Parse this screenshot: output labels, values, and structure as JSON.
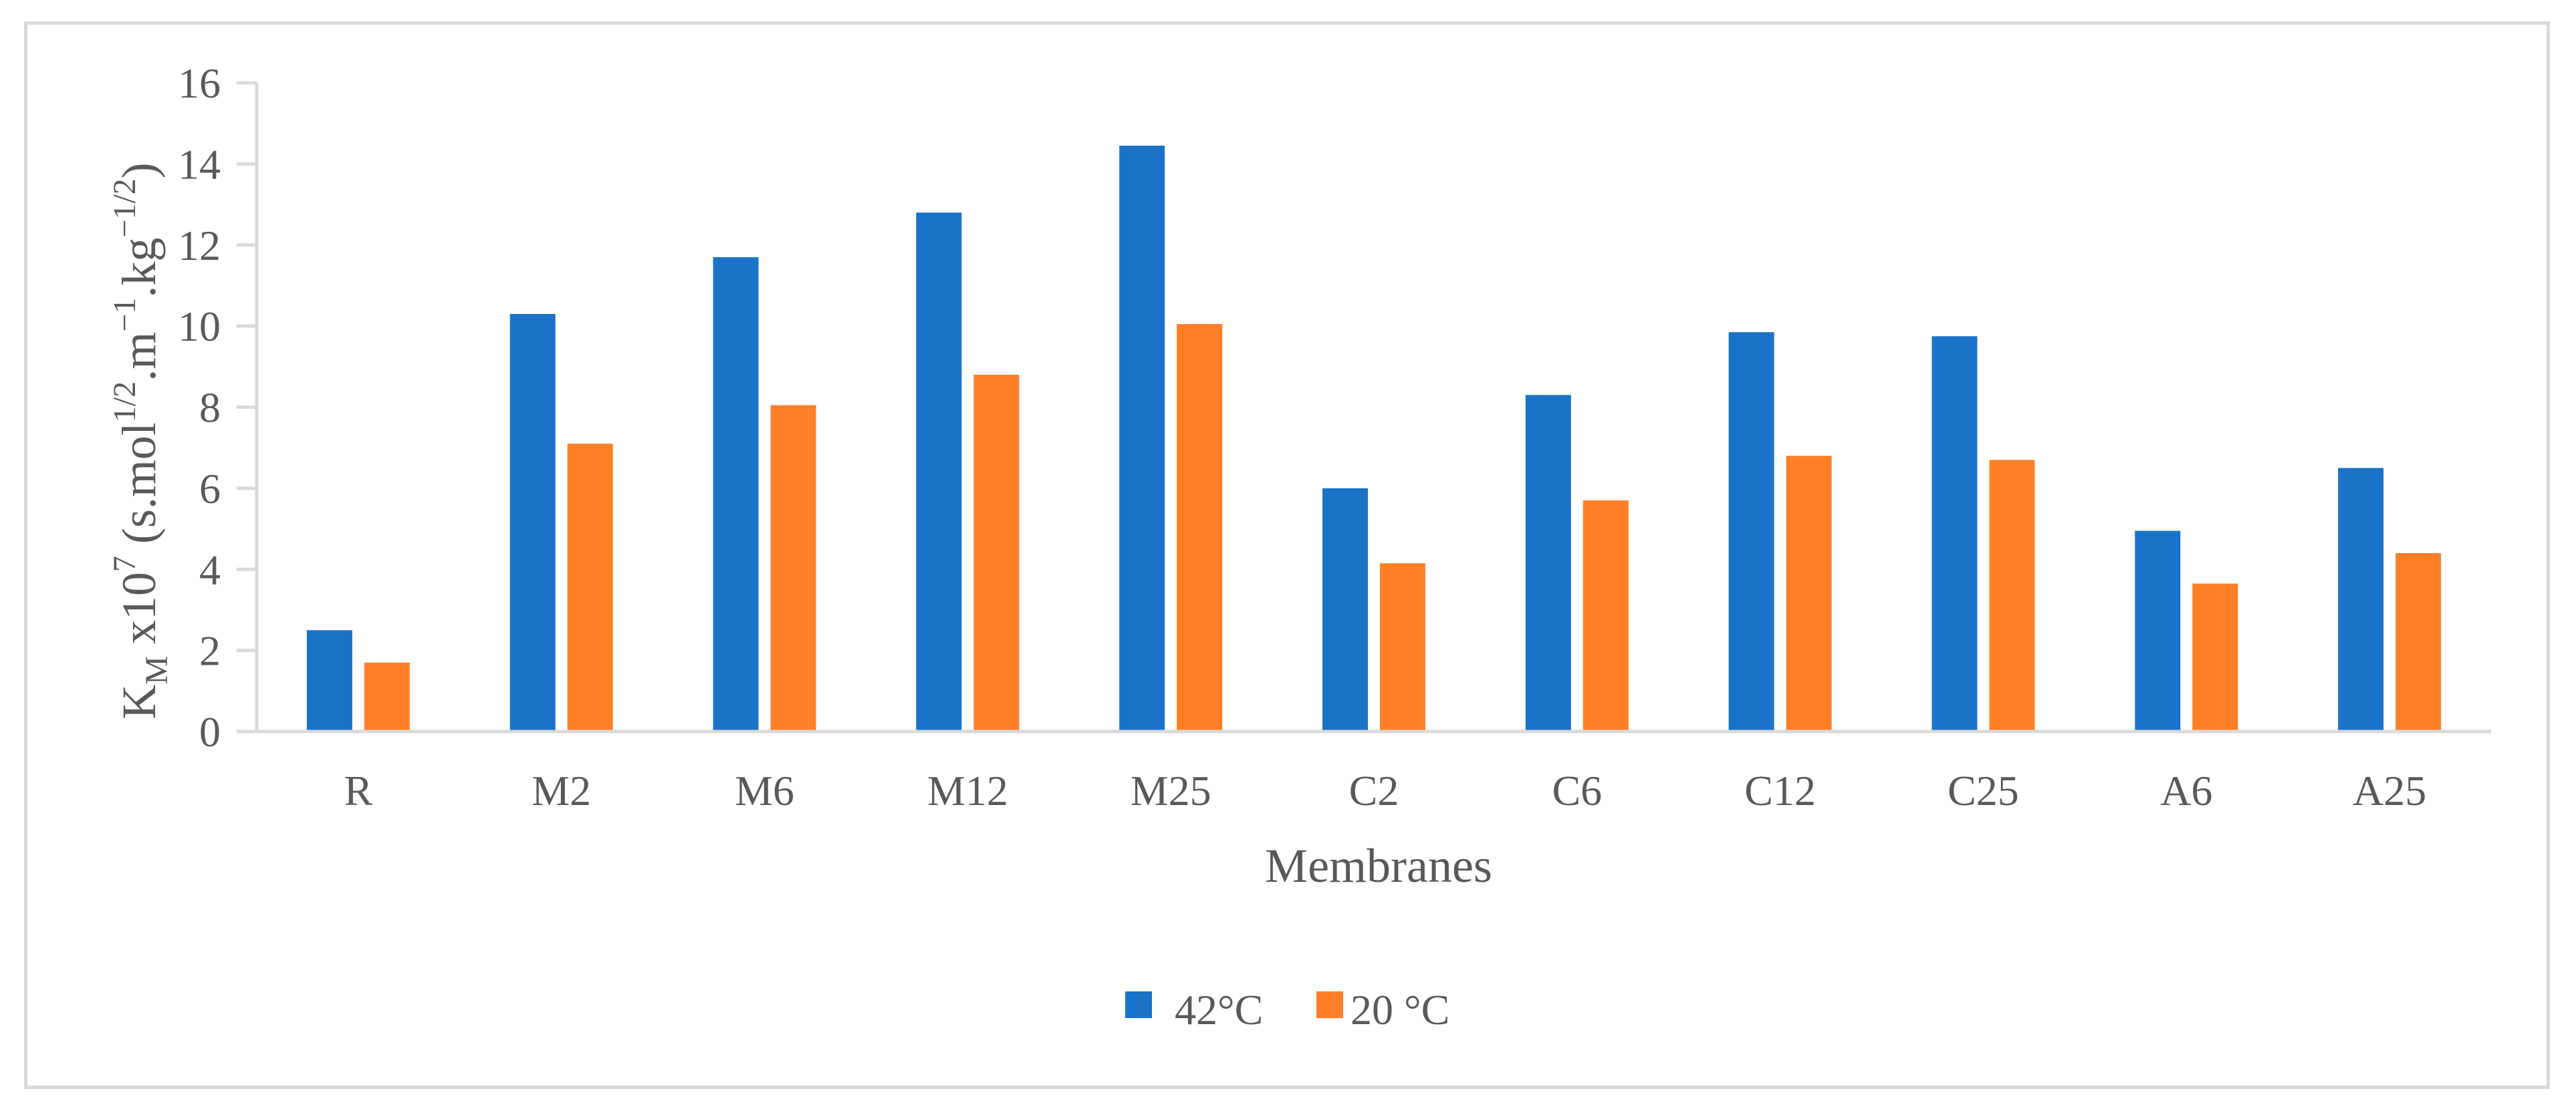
{
  "chart_data": {
    "type": "bar",
    "title": "",
    "xlabel": "Membranes",
    "ylabel": {
      "base": "K",
      "base_sub": "M",
      "mult": " x10",
      "mult_sup": "7",
      "unit_a": " (s.mol",
      "unit_a_sup": "1/2",
      "unit_b": ".m",
      "unit_b_sup": "−1",
      "unit_c": ".kg",
      "unit_c_sup": "−1/2",
      "unit_d": ")"
    },
    "ylim": [
      0,
      16
    ],
    "yticks": [
      0,
      2,
      4,
      6,
      8,
      10,
      12,
      14,
      16
    ],
    "categories": [
      "R",
      "M2",
      "M6",
      "M12",
      "M25",
      "C2",
      "C6",
      "C12",
      "C25",
      "A6",
      "A25"
    ],
    "series": [
      {
        "name": "42°C",
        "color": "#1a73c8",
        "values": [
          2.5,
          10.3,
          11.7,
          12.8,
          14.45,
          6.0,
          8.3,
          9.85,
          9.75,
          4.95,
          6.5
        ]
      },
      {
        "name": "20 °C",
        "color": "#ff7f27",
        "values": [
          1.7,
          7.1,
          8.05,
          8.8,
          10.05,
          4.15,
          5.7,
          6.8,
          6.7,
          3.65,
          4.4
        ]
      }
    ],
    "legend_position": "bottom",
    "grid": false
  }
}
